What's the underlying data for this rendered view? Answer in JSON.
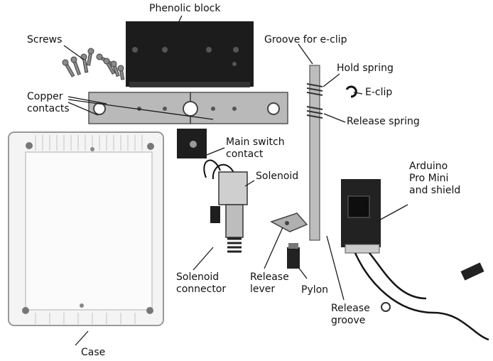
{
  "labels": {
    "phenolic_block": "Phenolic block",
    "screws": "Screws",
    "copper_contacts_line1": "Copper",
    "copper_contacts_line2": "contacts",
    "groove_eclip": "Groove for e-clip",
    "hold_spring": "Hold spring",
    "eclip": "E-clip",
    "release_spring": "Release spring",
    "main_switch_line1": "Main switch",
    "main_switch_line2": "contact",
    "solenoid": "Solenoid",
    "arduino_line1": "Arduino",
    "arduino_line2": "Pro Mini",
    "arduino_line3": "and shield",
    "solenoid_connector_line1": "Solenoid",
    "solenoid_connector_line2": "connector",
    "release_lever_line1": "Release",
    "release_lever_line2": "lever",
    "pylon": "Pylon",
    "release_groove_line1": "Release",
    "release_groove_line2": "groove",
    "case": "Case"
  },
  "colors": {
    "ink": "#111111",
    "leader": "#1a1a1a",
    "metal": "#b9b9b9",
    "dark": "#1e1e1e",
    "case_fill": "#f4f4f4",
    "case_edge": "#9a9a9a"
  }
}
